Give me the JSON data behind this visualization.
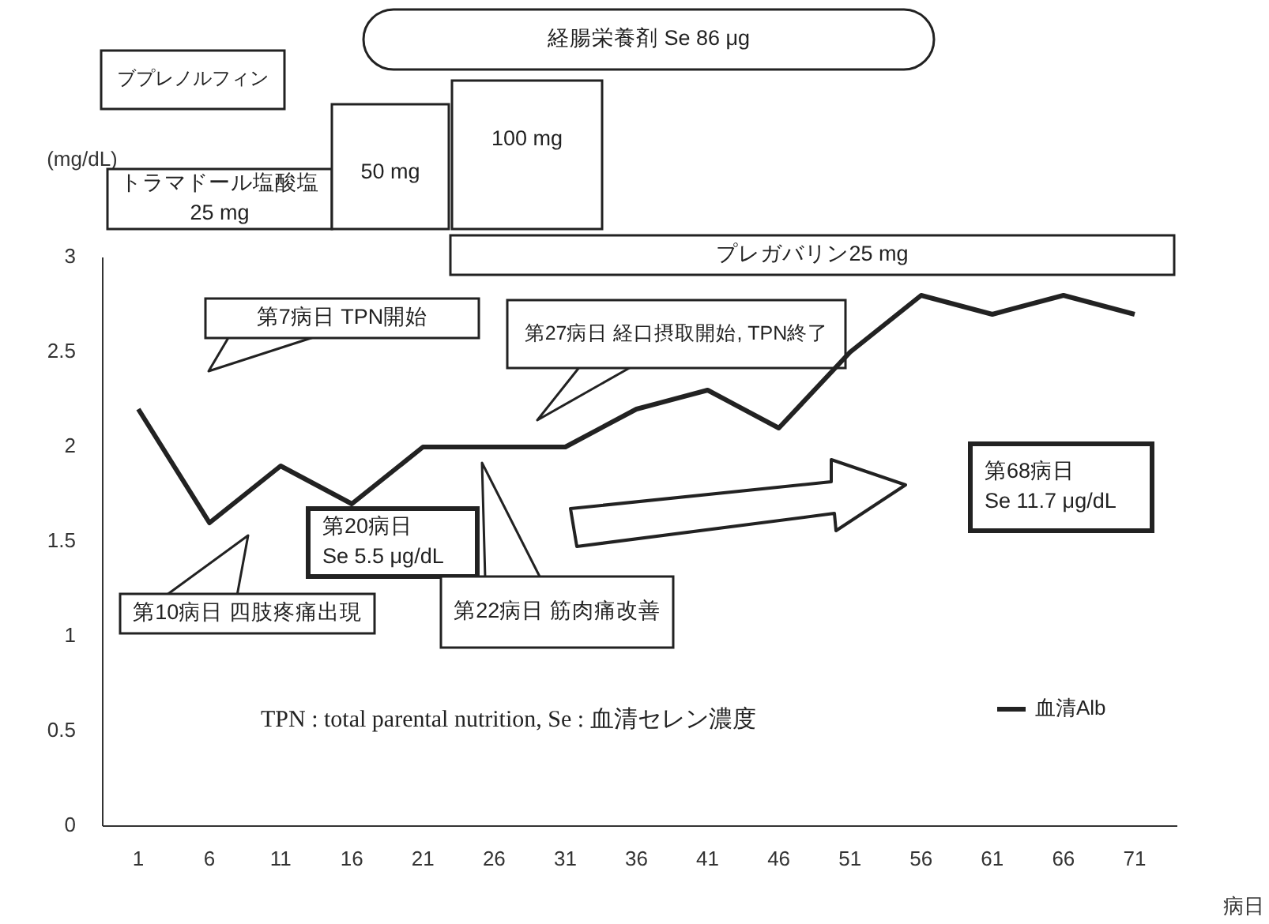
{
  "chart_data": {
    "type": "line",
    "xlabel": "病日",
    "ylabel": "(mg/dL)",
    "x": [
      1,
      6,
      11,
      16,
      21,
      26,
      31,
      36,
      41,
      46,
      51,
      56,
      61,
      66,
      71
    ],
    "series": [
      {
        "name": "血清Alb",
        "color": "#222222",
        "values": [
          2.2,
          1.6,
          1.9,
          1.7,
          2.0,
          2.0,
          2.0,
          2.2,
          2.3,
          2.1,
          2.5,
          2.8,
          2.7,
          2.8,
          2.7
        ]
      }
    ],
    "xlim": [
      -1.5,
      74
    ],
    "xticks": [
      1,
      6,
      11,
      16,
      21,
      26,
      31,
      36,
      41,
      46,
      51,
      56,
      61,
      66,
      71
    ],
    "ylim": [
      0,
      3
    ],
    "yticks": [
      0,
      0.5,
      1,
      1.5,
      2,
      2.5,
      3
    ],
    "grid": false,
    "legend": "right",
    "marker": "none",
    "line_style": "solid",
    "annotations": [
      "ブプレノルフィン",
      "トラマドール塩酸塩\n25 mg",
      "50 mg",
      "100 mg",
      "経腸栄養剤 Se 86 μg",
      "プレガバリン25 mg",
      "第7病日 TPN開始",
      "第27病日 経口摂取開始, TPN終了",
      "第10病日 四肢疼痛出現",
      "第20病日\nSe 5.5 μg/dL",
      "第22病日 筋肉痛改善",
      "第68病日\nSe 11.7 μg/dL",
      "TPN : total parental nutrition, Se : 血清セレン濃度"
    ]
  }
}
